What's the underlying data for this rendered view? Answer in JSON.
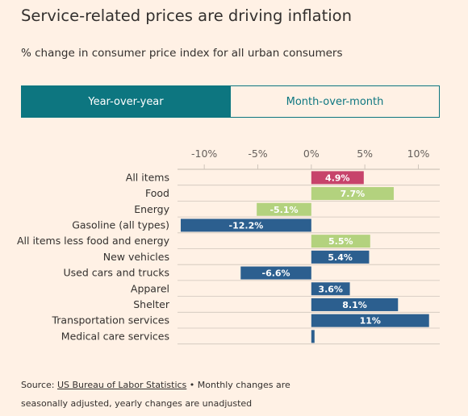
{
  "title": "Service-related prices are driving inflation",
  "subtitle": "% change in consumer price index for all urban consumers",
  "toggle": {
    "active_label": "Year-over-year",
    "inactive_label": "Month-over-month",
    "selected": "Year-over-year"
  },
  "source": {
    "prefix": "Source: ",
    "link_text": "US Bureau of Labor Statistics",
    "line1_rest": " • Monthly changes are",
    "line2": "seasonally adjusted, yearly changes are unadjusted"
  },
  "colors": {
    "background": "#fff1e5",
    "accent": "#0d7680",
    "all_items": "#c7436b",
    "food": "#b3d27e",
    "energy": "#b3d27e",
    "core_and_components": "#2c5f8f",
    "gridline": "#cfc5bb"
  },
  "chart_data": {
    "type": "bar",
    "orientation": "horizontal",
    "categories": [
      "All items",
      "Food",
      "Energy",
      "Gasoline (all types)",
      "All items less food and energy",
      "New vehicles",
      "Used cars and trucks",
      "Apparel",
      "Shelter",
      "Transportation services",
      "Medical care services"
    ],
    "values": [
      4.9,
      7.7,
      -5.1,
      -12.2,
      5.5,
      5.4,
      -6.6,
      3.6,
      8.1,
      11,
      0.3
    ],
    "value_labels": [
      "4.9%",
      "7.7%",
      "-5.1%",
      "-12.2%",
      "5.5%",
      "5.4%",
      "-6.6%",
      "3.6%",
      "8.1%",
      "11%",
      ""
    ],
    "bar_colors": [
      "#c7436b",
      "#b3d27e",
      "#b3d27e",
      "#2c5f8f",
      "#b3d27e",
      "#2c5f8f",
      "#2c5f8f",
      "#2c5f8f",
      "#2c5f8f",
      "#2c5f8f",
      "#2c5f8f"
    ],
    "label_colors": [
      "#ffffff",
      "#ffffff",
      "#ffffff",
      "#ffffff",
      "#ffffff",
      "#ffffff",
      "#ffffff",
      "#ffffff",
      "#ffffff",
      "#ffffff",
      "#ffffff"
    ],
    "xlim": [
      -12.5,
      12
    ],
    "ticks": [
      -10,
      -5,
      0,
      5,
      10
    ],
    "tick_labels": [
      "-10%",
      "-5%",
      "0%",
      "5%",
      "10%"
    ],
    "xlabel": "",
    "ylabel": "",
    "grid": true
  }
}
